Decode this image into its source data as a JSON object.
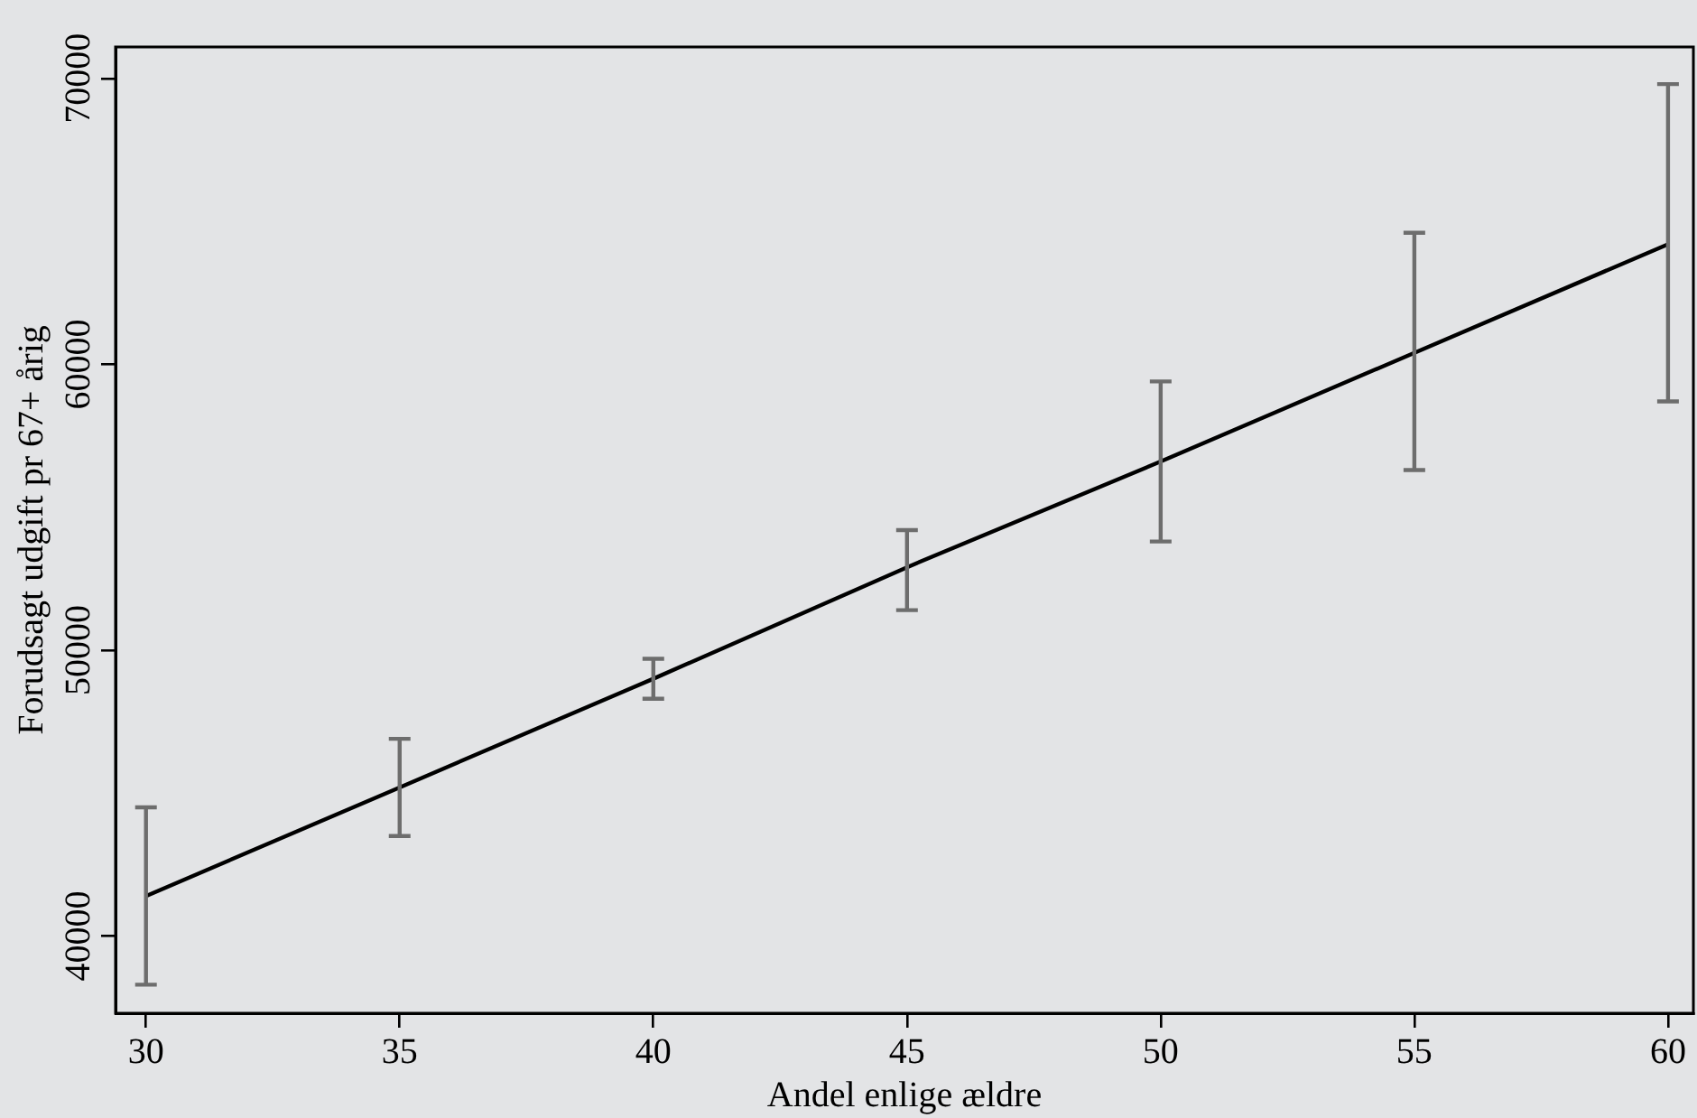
{
  "chart_data": {
    "type": "line",
    "xlabel": "Andel enlige ældre",
    "ylabel": "Forudsagt udgift pr 67+ årig",
    "x": [
      30,
      35,
      40,
      45,
      50,
      55,
      60
    ],
    "series": [
      {
        "color": "#000000",
        "values": [
          41400,
          45200,
          49000,
          52900,
          56600,
          60400,
          64200
        ],
        "errors": [
          [
            38300,
            44500
          ],
          [
            43500,
            46900
          ],
          [
            48300,
            49700
          ],
          [
            51400,
            54200
          ],
          [
            53800,
            59400
          ],
          [
            56300,
            64600
          ],
          [
            58700,
            69800
          ]
        ]
      }
    ],
    "xlim": [
      29.4,
      60.5
    ],
    "ylim": [
      37300,
      71100
    ],
    "xticks": [
      30,
      35,
      40,
      45,
      50,
      55,
      60
    ],
    "yticks": [
      40000,
      50000,
      60000,
      70000
    ],
    "grid": false,
    "legend": false,
    "marker": "none",
    "line_style": "solid"
  }
}
